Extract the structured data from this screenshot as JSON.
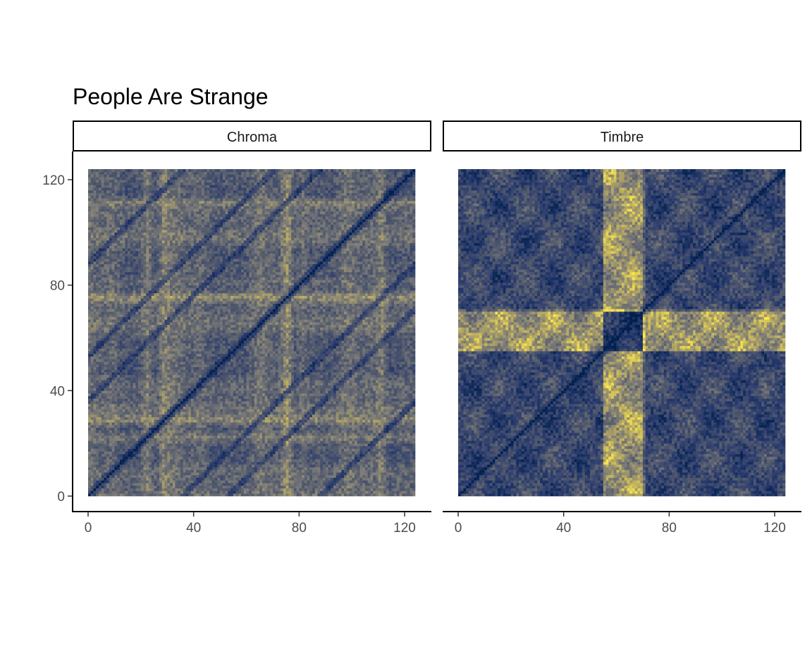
{
  "chart_data": {
    "type": "heatmap",
    "title": "People Are Strange",
    "xlabel": "",
    "ylabel": "",
    "colormap": "cividis",
    "colors": {
      "low": "#00204d",
      "mid_low": "#2a3b6e",
      "mid": "#7c7b78",
      "high": "#fde84a"
    },
    "panels": [
      {
        "label": "Chroma",
        "n": 124,
        "xlim": [
          0,
          124
        ],
        "ylim": [
          0,
          124
        ],
        "x_ticks": [
          0,
          40,
          80,
          120
        ],
        "y_ticks": [
          0,
          40,
          80,
          120
        ],
        "block_lines": [
          22,
          28,
          75,
          81,
          111
        ],
        "feature_rows": [
          22,
          28,
          75,
          81,
          111,
          118
        ]
      },
      {
        "label": "Timbre",
        "n": 124,
        "xlim": [
          0,
          124
        ],
        "ylim": [
          0,
          124
        ],
        "x_ticks": [
          0,
          40,
          80,
          120
        ],
        "y_ticks": [],
        "bright_columns": [
          55,
          69
        ],
        "bright_rows": [
          55,
          69
        ]
      }
    ]
  }
}
